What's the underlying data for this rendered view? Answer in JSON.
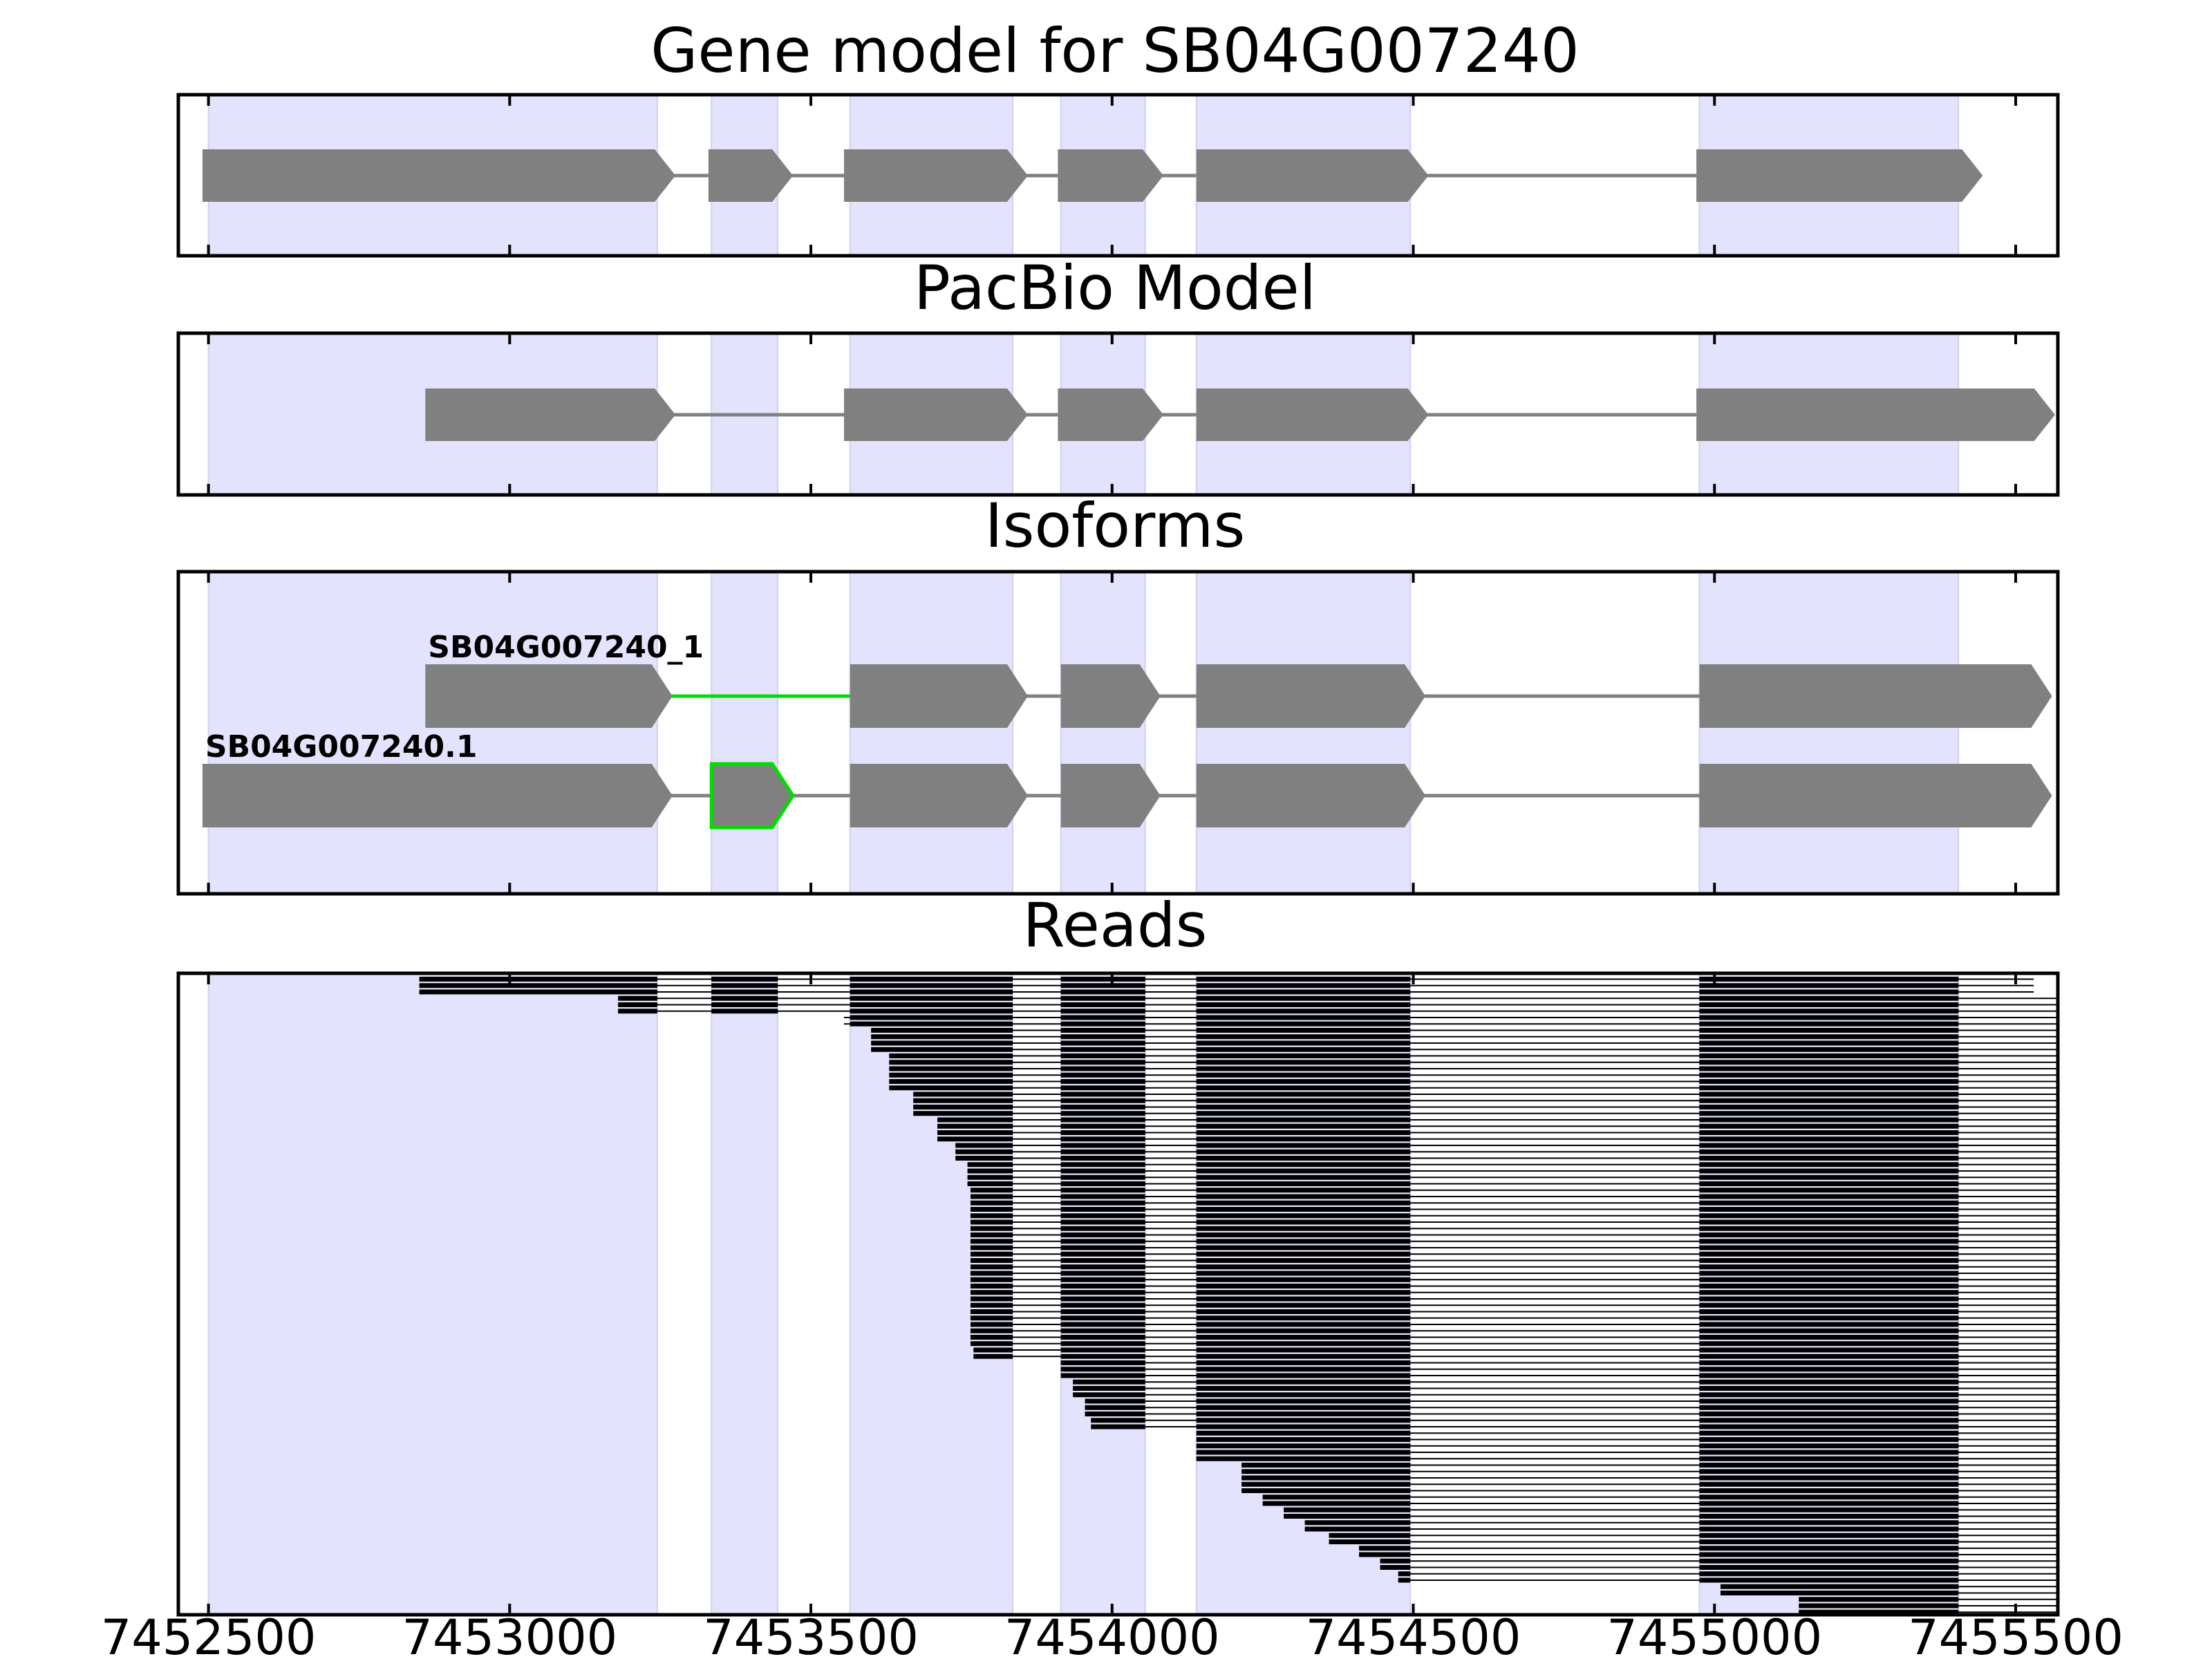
{
  "chart_data": {
    "type": "gene-model",
    "x_ticks": [
      7452500,
      7453000,
      7453500,
      7454000,
      7454500,
      7455000,
      7455500
    ],
    "xlim": [
      7452450,
      7455570
    ],
    "exon_regions": [
      [
        7452500,
        7453245
      ],
      [
        7453335,
        7453445
      ],
      [
        7453565,
        7453835
      ],
      [
        7453915,
        7454055
      ],
      [
        7454140,
        7454495
      ],
      [
        7454975,
        7455405
      ]
    ],
    "highlight_color": "#00dd00",
    "exon_color": "#808080",
    "band_color": "#e3e3fd",
    "panels": [
      {
        "title": "Gene model for SB04G007240",
        "tracks": [
          {
            "label": "",
            "exons": [
              [
                7452490,
                7453250
              ],
              [
                7453330,
                7453445
              ],
              [
                7453555,
                7453835
              ],
              [
                7453910,
                7454060
              ],
              [
                7454140,
                7454500
              ],
              [
                7454970,
                7455420
              ]
            ]
          }
        ]
      },
      {
        "title": "PacBio Model",
        "tracks": [
          {
            "label": "",
            "exons": [
              [
                7452860,
                7453250
              ],
              [
                7453555,
                7453835
              ],
              [
                7453910,
                7454060
              ],
              [
                7454140,
                7454500
              ],
              [
                7454970,
                7455540
              ]
            ]
          }
        ]
      },
      {
        "title": "Isoforms",
        "tracks": [
          {
            "label": "SB04G007240_1",
            "exons": [
              [
                7452860,
                7453245
              ],
              [
                7453565,
                7453835
              ],
              [
                7453915,
                7454055
              ],
              [
                7454140,
                7454495
              ],
              [
                7454975,
                7455535
              ]
            ],
            "highlight_introns": [
              0
            ]
          },
          {
            "label": "SB04G007240.1",
            "exons": [
              [
                7452490,
                7453245
              ],
              [
                7453335,
                7453445
              ],
              [
                7453565,
                7453835
              ],
              [
                7453915,
                7454055
              ],
              [
                7454140,
                7454495
              ],
              [
                7454975,
                7455535
              ]
            ],
            "highlight_exons": [
              1
            ]
          }
        ]
      },
      {
        "title": "Reads",
        "read_groups": [
          {
            "start": 7452850,
            "end": 7455530,
            "count": 3
          },
          {
            "start": 7453180,
            "end": 7455570,
            "count": 3
          },
          {
            "start": 7453555,
            "end": 7455570,
            "count": 2
          },
          {
            "start": 7453600,
            "end": 7455570,
            "count": 4
          },
          {
            "start": 7453630,
            "end": 7455570,
            "count": 6
          },
          {
            "start": 7453670,
            "end": 7455570,
            "count": 4
          },
          {
            "start": 7453710,
            "end": 7455570,
            "count": 4
          },
          {
            "start": 7453740,
            "end": 7455570,
            "count": 3
          },
          {
            "start": 7453760,
            "end": 7455570,
            "count": 4
          },
          {
            "start": 7453765,
            "end": 7455570,
            "count": 25
          },
          {
            "start": 7453770,
            "end": 7455570,
            "count": 2
          },
          {
            "start": 7453915,
            "end": 7455570,
            "count": 3
          },
          {
            "start": 7453935,
            "end": 7455570,
            "count": 3
          },
          {
            "start": 7453955,
            "end": 7455570,
            "count": 3
          },
          {
            "start": 7453965,
            "end": 7455570,
            "count": 2
          },
          {
            "start": 7454140,
            "end": 7455570,
            "count": 5
          },
          {
            "start": 7454215,
            "end": 7455570,
            "count": 5
          },
          {
            "start": 7454250,
            "end": 7455570,
            "count": 2
          },
          {
            "start": 7454285,
            "end": 7455570,
            "count": 2
          },
          {
            "start": 7454320,
            "end": 7455570,
            "count": 2
          },
          {
            "start": 7454360,
            "end": 7455570,
            "count": 2
          },
          {
            "start": 7454410,
            "end": 7455570,
            "count": 2
          },
          {
            "start": 7454445,
            "end": 7455570,
            "count": 2
          },
          {
            "start": 7454475,
            "end": 7455570,
            "count": 2
          },
          {
            "start": 7455010,
            "end": 7455570,
            "count": 2
          },
          {
            "start": 7455140,
            "end": 7455570,
            "count": 3
          }
        ]
      }
    ]
  }
}
